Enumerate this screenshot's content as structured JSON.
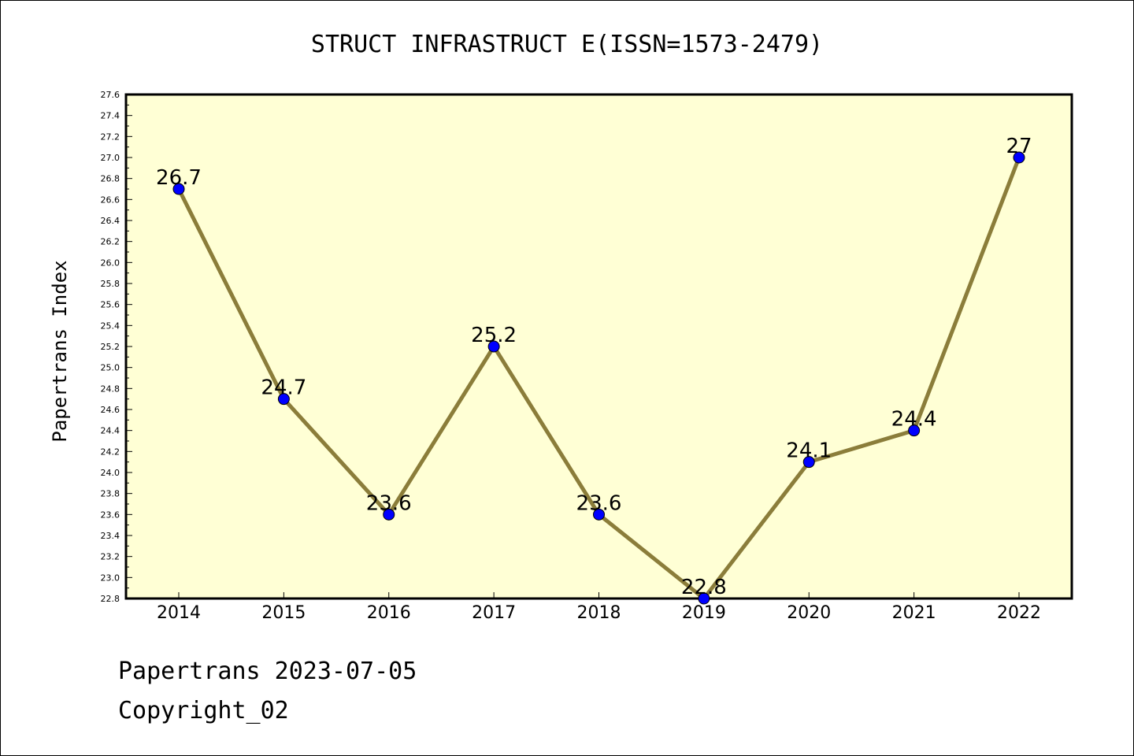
{
  "chart_data": {
    "type": "line",
    "title": "STRUCT INFRASTRUCT E(ISSN=1573-2479)",
    "xlabel": "",
    "ylabel": "Papertrans Index",
    "categories": [
      "2014",
      "2015",
      "2016",
      "2017",
      "2018",
      "2019",
      "2020",
      "2021",
      "2022"
    ],
    "series": [
      {
        "values": [
          26.7,
          24.7,
          23.6,
          25.2,
          23.6,
          22.8,
          24.1,
          24.4,
          27
        ]
      }
    ],
    "data_labels": [
      "26.7",
      "24.7",
      "23.6",
      "25.2",
      "23.6",
      "22.8",
      "24.1",
      "24.4",
      "27"
    ],
    "ylim": [
      22.8,
      27.6
    ],
    "ytick_step": 0.2,
    "grid": false,
    "colors": {
      "plot_background": "#ffffd5",
      "line": "#8b7d3a",
      "marker": "#0000ff"
    }
  },
  "footer": {
    "line1": "Papertrans 2023-07-05",
    "line2": "Copyright_02"
  }
}
